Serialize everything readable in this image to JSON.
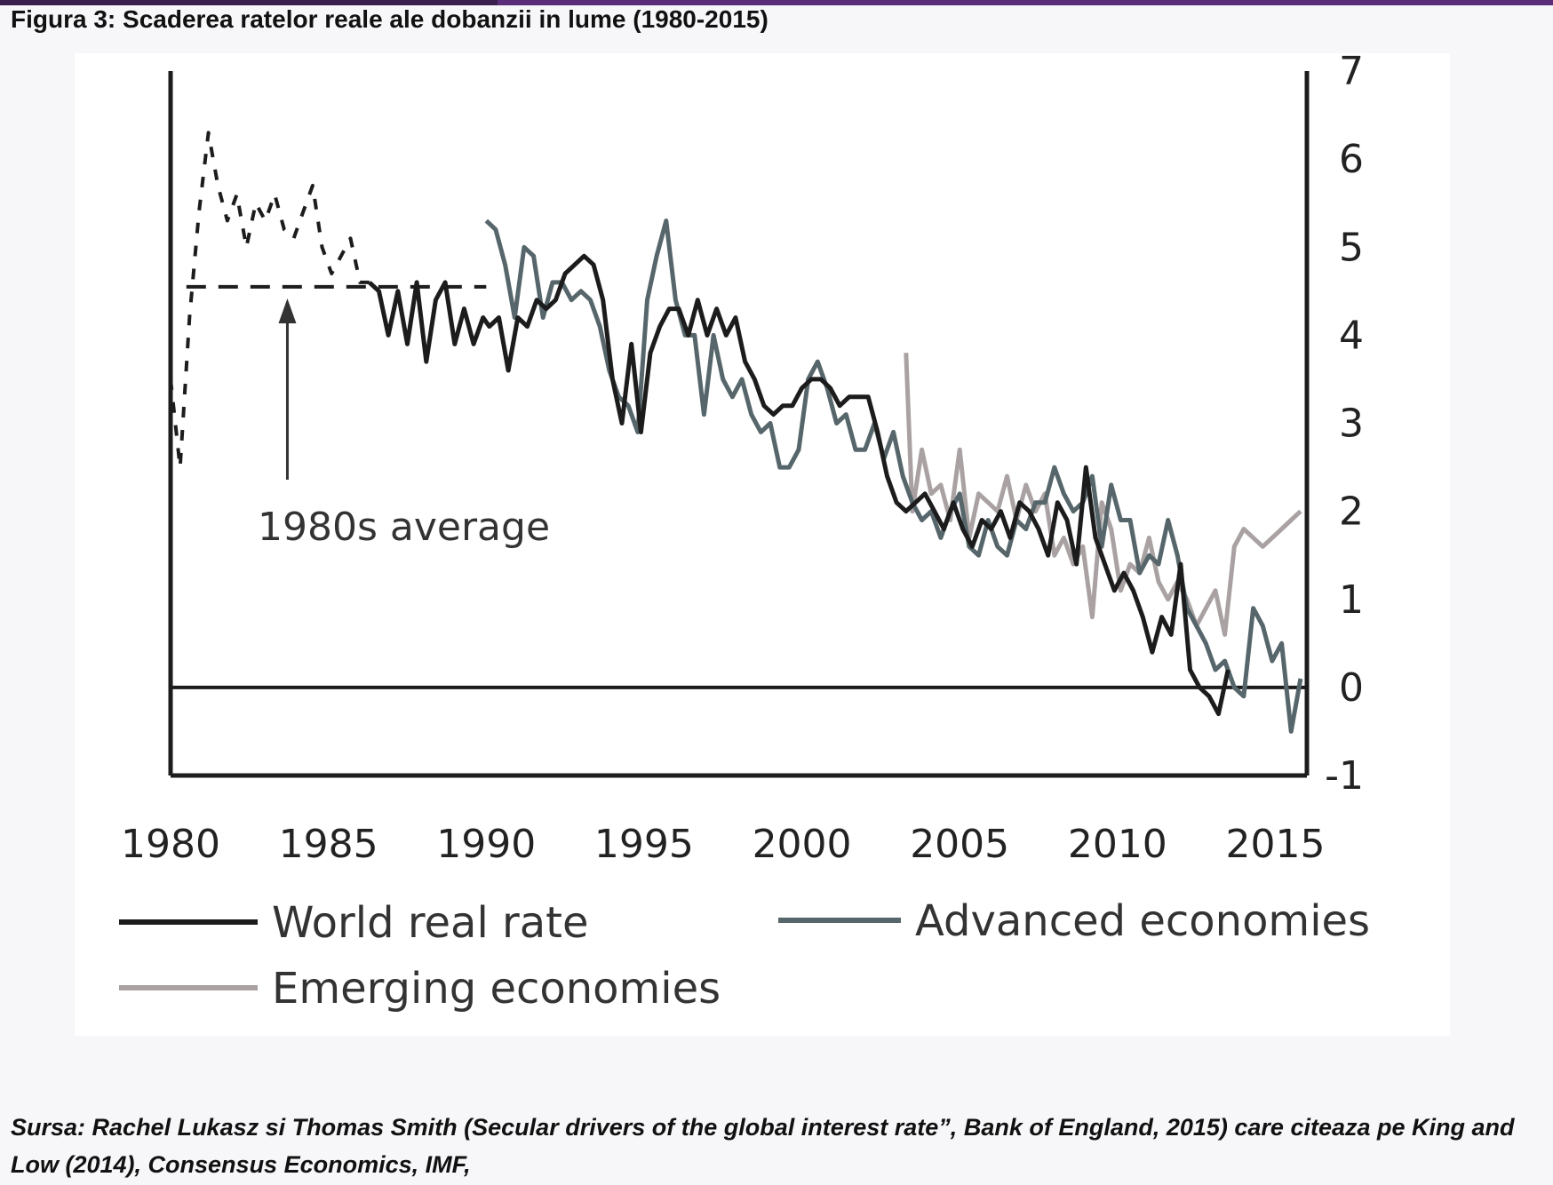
{
  "title": "Figura 3: Scaderea ratelor reale ale dobanzii in lume  (1980-2015)",
  "source": "Sursa: Rachel Lukasz si Thomas Smith (Secular drivers of the global interest rate”, Bank of England, 2015) care citeaza pe King and Low (2014), Consensus Economics, IMF,",
  "chart_data": {
    "type": "line",
    "title": "",
    "xlabel": "",
    "ylabel": "",
    "xlim": [
      1980,
      2016
    ],
    "ylim": [
      -1,
      7
    ],
    "x_ticks": [
      1980,
      1985,
      1990,
      1995,
      2000,
      2005,
      2010,
      2015
    ],
    "y_ticks": [
      -1,
      0,
      1,
      2,
      3,
      4,
      5,
      6,
      7
    ],
    "y_axis_side": "right",
    "grid": false,
    "legend_position": "bottom",
    "zero_line": true,
    "annotation": {
      "text": "1980s average",
      "arrow_to_x": 1983.7
    },
    "colors": {
      "world": "#1c1c1c",
      "advanced": "#56666b",
      "emerging": "#aaa2a2",
      "average": "#1c1c1c"
    },
    "series": [
      {
        "name": "World real rate",
        "key": "world",
        "style": "solid",
        "x": [
          1986.3,
          1986.6,
          1986.9,
          1987.2,
          1987.5,
          1987.8,
          1988.1,
          1988.4,
          1988.7,
          1989.0,
          1989.3,
          1989.6,
          1989.9,
          1990.1,
          1990.4,
          1990.7,
          1991.0,
          1991.3,
          1991.6,
          1991.9,
          1992.2,
          1992.5,
          1992.8,
          1993.1,
          1993.4,
          1993.7,
          1994.0,
          1994.3,
          1994.6,
          1994.9,
          1995.2,
          1995.5,
          1995.8,
          1996.1,
          1996.4,
          1996.7,
          1997.0,
          1997.3,
          1997.6,
          1997.9,
          1998.2,
          1998.5,
          1998.8,
          1999.1,
          1999.4,
          1999.7,
          2000.0,
          2000.3,
          2000.6,
          2000.9,
          2001.2,
          2001.5,
          2001.8,
          2002.1,
          2002.4,
          2002.7,
          2003.0,
          2003.3,
          2003.6,
          2003.9,
          2004.2,
          2004.5,
          2004.8,
          2005.1,
          2005.4,
          2005.7,
          2006.0,
          2006.3,
          2006.6,
          2006.9,
          2007.2,
          2007.5,
          2007.8,
          2008.1,
          2008.4,
          2008.7,
          2009.0,
          2009.3,
          2009.6,
          2009.9,
          2010.2,
          2010.5,
          2010.8,
          2011.1,
          2011.4,
          2011.7,
          2012.0,
          2012.3,
          2012.6,
          2012.9,
          2013.2,
          2013.5
        ],
        "values": [
          4.6,
          4.5,
          4.0,
          4.5,
          3.9,
          4.6,
          3.7,
          4.4,
          4.6,
          3.9,
          4.3,
          3.9,
          4.2,
          4.1,
          4.2,
          3.6,
          4.2,
          4.1,
          4.4,
          4.3,
          4.4,
          4.7,
          4.8,
          4.9,
          4.8,
          4.4,
          3.5,
          3.0,
          3.9,
          2.9,
          3.8,
          4.1,
          4.3,
          4.3,
          4.0,
          4.4,
          4.0,
          4.3,
          4.0,
          4.2,
          3.7,
          3.5,
          3.2,
          3.1,
          3.2,
          3.2,
          3.4,
          3.5,
          3.5,
          3.4,
          3.2,
          3.3,
          3.3,
          3.3,
          2.9,
          2.4,
          2.1,
          2.0,
          2.1,
          2.2,
          2.0,
          1.8,
          2.1,
          1.8,
          1.6,
          1.9,
          1.8,
          2.0,
          1.7,
          2.1,
          2.0,
          1.8,
          1.5,
          2.1,
          1.9,
          1.4,
          2.5,
          1.7,
          1.4,
          1.1,
          1.3,
          1.1,
          0.8,
          0.4,
          0.8,
          0.6,
          1.4,
          0.2,
          0.0,
          -0.1,
          -0.3,
          0.2
        ]
      },
      {
        "name": "Advanced economies",
        "key": "advanced",
        "style": "solid",
        "x": [
          1990.0,
          1990.3,
          1990.6,
          1990.9,
          1991.2,
          1991.5,
          1991.8,
          1992.1,
          1992.4,
          1992.7,
          1993.0,
          1993.3,
          1993.6,
          1993.9,
          1994.2,
          1994.5,
          1994.8,
          1995.1,
          1995.4,
          1995.7,
          1996.0,
          1996.3,
          1996.6,
          1996.9,
          1997.2,
          1997.5,
          1997.8,
          1998.1,
          1998.4,
          1998.7,
          1999.0,
          1999.3,
          1999.6,
          1999.9,
          2000.2,
          2000.5,
          2000.8,
          2001.1,
          2001.4,
          2001.7,
          2002.0,
          2002.3,
          2002.6,
          2002.9,
          2003.2,
          2003.5,
          2003.8,
          2004.1,
          2004.4,
          2004.7,
          2005.0,
          2005.3,
          2005.6,
          2005.9,
          2006.2,
          2006.5,
          2006.8,
          2007.1,
          2007.4,
          2007.7,
          2008.0,
          2008.3,
          2008.6,
          2008.9,
          2009.2,
          2009.5,
          2009.8,
          2010.1,
          2010.4,
          2010.7,
          2011.0,
          2011.3,
          2011.6,
          2011.9,
          2012.2,
          2012.5,
          2012.8,
          2013.1,
          2013.4,
          2013.7,
          2014.0,
          2014.3,
          2014.6,
          2014.9,
          2015.2,
          2015.5,
          2015.8
        ],
        "values": [
          5.3,
          5.2,
          4.8,
          4.2,
          5.0,
          4.9,
          4.2,
          4.6,
          4.6,
          4.4,
          4.5,
          4.4,
          4.1,
          3.6,
          3.3,
          3.2,
          2.9,
          4.4,
          4.9,
          5.3,
          4.4,
          4.0,
          4.0,
          3.1,
          4.0,
          3.5,
          3.3,
          3.5,
          3.1,
          2.9,
          3.0,
          2.5,
          2.5,
          2.7,
          3.5,
          3.7,
          3.4,
          3.0,
          3.1,
          2.7,
          2.7,
          3.0,
          2.6,
          2.9,
          2.4,
          2.1,
          1.9,
          2.0,
          1.7,
          2.0,
          2.2,
          1.6,
          1.5,
          1.9,
          1.6,
          1.5,
          1.9,
          1.8,
          2.1,
          2.1,
          2.5,
          2.2,
          2.0,
          2.1,
          2.4,
          1.6,
          2.3,
          1.9,
          1.9,
          1.3,
          1.5,
          1.4,
          1.9,
          1.5,
          0.9,
          0.7,
          0.5,
          0.2,
          0.3,
          0.0,
          -0.1,
          0.9,
          0.7,
          0.3,
          0.5,
          -0.5,
          0.1
        ]
      },
      {
        "name": "Emerging economies",
        "key": "emerging",
        "style": "solid",
        "x": [
          2003.3,
          2003.5,
          2003.8,
          2004.1,
          2004.4,
          2004.7,
          2005.0,
          2005.3,
          2005.6,
          2005.9,
          2006.2,
          2006.5,
          2006.8,
          2007.1,
          2007.4,
          2007.7,
          2008.0,
          2008.3,
          2008.6,
          2008.9,
          2009.2,
          2009.5,
          2009.8,
          2010.1,
          2010.4,
          2010.7,
          2011.0,
          2011.3,
          2011.6,
          2011.9,
          2012.2,
          2012.5,
          2012.8,
          2013.1,
          2013.4,
          2013.7,
          2014.0,
          2014.3,
          2014.6,
          2014.9,
          2015.2,
          2015.5,
          2015.8
        ],
        "values": [
          3.8,
          2.0,
          2.7,
          2.2,
          2.3,
          1.9,
          2.7,
          1.7,
          2.2,
          2.1,
          2.0,
          2.4,
          1.9,
          2.3,
          2.0,
          2.2,
          1.5,
          1.7,
          1.4,
          1.6,
          0.8,
          2.1,
          1.8,
          1.1,
          1.4,
          1.3,
          1.7,
          1.2,
          1.0,
          1.2,
          1.0,
          0.7,
          0.9,
          1.1,
          0.6,
          1.6,
          1.8,
          1.7,
          1.6,
          1.7,
          1.8,
          1.9,
          2.0
        ]
      },
      {
        "name": "",
        "key": "dashed_early",
        "style": "dashed",
        "x": [
          1980.0,
          1980.3,
          1980.6,
          1980.9,
          1981.2,
          1981.5,
          1981.8,
          1982.1,
          1982.4,
          1982.7,
          1983.0,
          1983.3,
          1983.6,
          1983.9,
          1984.2,
          1984.5,
          1984.8,
          1985.1,
          1985.4,
          1985.7,
          1986.0,
          1986.3
        ],
        "values": [
          3.5,
          2.5,
          4.2,
          5.4,
          6.3,
          5.7,
          5.3,
          5.6,
          5.0,
          5.5,
          5.3,
          5.6,
          5.2,
          5.1,
          5.4,
          5.7,
          5.0,
          4.7,
          4.9,
          5.1,
          4.6,
          4.6
        ]
      },
      {
        "name": "",
        "key": "average",
        "style": "dashed",
        "x": [
          1980.5,
          1990.0
        ],
        "values": [
          4.55,
          4.55
        ]
      }
    ]
  },
  "legend": [
    {
      "label": "World real rate",
      "key": "world"
    },
    {
      "label": "Advanced economies",
      "key": "advanced"
    },
    {
      "label": "Emerging economies",
      "key": "emerging"
    }
  ]
}
